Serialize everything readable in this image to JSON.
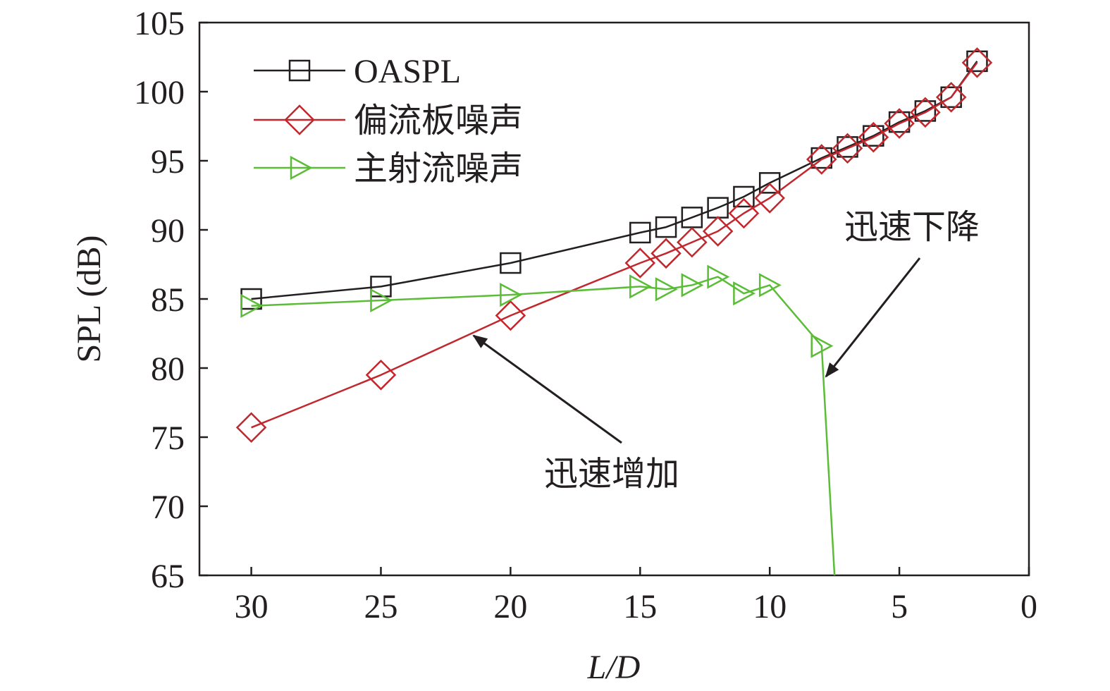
{
  "chart_data": {
    "type": "line",
    "xlabel": "L/D",
    "ylabel": "SPL (dB)",
    "xlim": [
      32,
      0
    ],
    "ylim": [
      65,
      105
    ],
    "x_reversed": true,
    "xticks": [
      30,
      25,
      20,
      15,
      10,
      5,
      0
    ],
    "yticks": [
      65,
      70,
      75,
      80,
      85,
      90,
      95,
      100,
      105
    ],
    "grid": false,
    "legend_position": "top-left",
    "series": [
      {
        "name": "OASPL",
        "color": "#231f20",
        "marker": "square",
        "x": [
          30,
          25,
          20,
          15,
          14,
          13,
          12,
          11,
          10,
          8,
          7,
          6,
          5,
          4,
          3,
          2
        ],
        "y": [
          85.0,
          85.9,
          87.6,
          89.8,
          90.2,
          90.9,
          91.6,
          92.4,
          93.4,
          95.2,
          96.0,
          96.8,
          97.8,
          98.6,
          99.6,
          102.2
        ]
      },
      {
        "name": "偏流板噪声",
        "color": "#c1272d",
        "marker": "diamond",
        "x": [
          30,
          25,
          20,
          15,
          14,
          13,
          12,
          11,
          10,
          8,
          7,
          6,
          5,
          4,
          3,
          2
        ],
        "y": [
          75.7,
          79.5,
          83.8,
          87.6,
          88.3,
          89.1,
          89.9,
          91.2,
          92.3,
          95.1,
          95.9,
          96.7,
          97.7,
          98.5,
          99.6,
          102.1
        ]
      },
      {
        "name": "主射流噪声",
        "color": "#5bbd37",
        "marker": "triangle-right",
        "x": [
          30,
          25,
          20,
          15,
          14,
          13,
          12,
          11,
          10,
          8,
          7.5
        ],
        "y": [
          84.5,
          84.9,
          85.3,
          85.9,
          85.7,
          86.0,
          86.6,
          85.4,
          86.0,
          81.6,
          65.0
        ]
      }
    ],
    "annotations": [
      {
        "text": "迅速增加"
      },
      {
        "text": "迅速下降"
      }
    ]
  }
}
